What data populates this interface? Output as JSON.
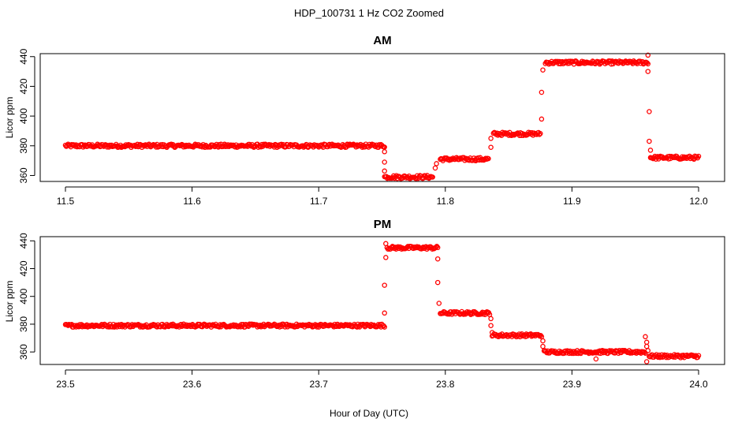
{
  "figure": {
    "title": "HDP_100731  1 Hz CO2 Zoomed",
    "xlabel": "Hour of Day (UTC)"
  },
  "chart_data": [
    {
      "type": "scatter",
      "title": "AM",
      "xlabel": "",
      "ylabel": "Licor ppm",
      "xlim": [
        11.5,
        12.0
      ],
      "ylim": [
        356,
        442
      ],
      "xticks": [
        11.5,
        11.6,
        11.7,
        11.8,
        11.9,
        12.0
      ],
      "xtick_labels": [
        "11.5",
        "11.6",
        "11.7",
        "11.8",
        "11.9",
        "12.0"
      ],
      "yticks": [
        360,
        380,
        400,
        420,
        440
      ],
      "ytick_labels": [
        "360",
        "380",
        "400",
        "420",
        "440"
      ],
      "grid": false,
      "marker": "open-circle",
      "color": "#ff0000",
      "series": [
        {
          "segments": [
            {
              "x0": 11.5,
              "x1": 11.752,
              "y": 380
            },
            {
              "x0": 11.752,
              "x1": 11.79,
              "y": 359
            },
            {
              "x0": 11.796,
              "x1": 11.834,
              "y": 371
            },
            {
              "x0": 11.838,
              "x1": 11.875,
              "y": 388
            },
            {
              "x0": 11.879,
              "x1": 11.96,
              "y": 436
            },
            {
              "x0": 11.962,
              "x1": 12.0,
              "y": 372
            }
          ],
          "transitions": [
            {
              "x": 11.752,
              "y": 376
            },
            {
              "x": 11.752,
              "y": 369
            },
            {
              "x": 11.752,
              "y": 363
            },
            {
              "x": 11.792,
              "y": 365
            },
            {
              "x": 11.793,
              "y": 368
            },
            {
              "x": 11.836,
              "y": 379
            },
            {
              "x": 11.836,
              "y": 385
            },
            {
              "x": 11.876,
              "y": 398
            },
            {
              "x": 11.876,
              "y": 416
            },
            {
              "x": 11.877,
              "y": 431
            },
            {
              "x": 11.96,
              "y": 441
            },
            {
              "x": 11.96,
              "y": 430
            },
            {
              "x": 11.961,
              "y": 403
            },
            {
              "x": 11.961,
              "y": 383
            },
            {
              "x": 11.962,
              "y": 377
            }
          ]
        }
      ]
    },
    {
      "type": "scatter",
      "title": "PM",
      "xlabel": "Hour of Day (UTC)",
      "ylabel": "Licor ppm",
      "xlim": [
        23.5,
        24.0
      ],
      "ylim": [
        351,
        443
      ],
      "xticks": [
        23.5,
        23.6,
        23.7,
        23.8,
        23.9,
        24.0
      ],
      "xtick_labels": [
        "23.5",
        "23.6",
        "23.7",
        "23.8",
        "23.9",
        "24.0"
      ],
      "yticks": [
        360,
        380,
        400,
        420,
        440
      ],
      "ytick_labels": [
        "360",
        "380",
        "400",
        "420",
        "440"
      ],
      "grid": false,
      "marker": "open-circle",
      "color": "#ff0000",
      "series": [
        {
          "segments": [
            {
              "x0": 23.5,
              "x1": 23.752,
              "y": 379
            },
            {
              "x0": 23.754,
              "x1": 23.794,
              "y": 435
            },
            {
              "x0": 23.796,
              "x1": 23.835,
              "y": 388
            },
            {
              "x0": 23.837,
              "x1": 23.876,
              "y": 372
            },
            {
              "x0": 23.878,
              "x1": 23.958,
              "y": 360
            },
            {
              "x0": 23.961,
              "x1": 24.0,
              "y": 357
            }
          ],
          "transitions": [
            {
              "x": 23.752,
              "y": 388
            },
            {
              "x": 23.752,
              "y": 408
            },
            {
              "x": 23.753,
              "y": 428
            },
            {
              "x": 23.753,
              "y": 438
            },
            {
              "x": 23.794,
              "y": 427
            },
            {
              "x": 23.794,
              "y": 410
            },
            {
              "x": 23.795,
              "y": 395
            },
            {
              "x": 23.836,
              "y": 384
            },
            {
              "x": 23.836,
              "y": 379
            },
            {
              "x": 23.837,
              "y": 374
            },
            {
              "x": 23.877,
              "y": 368
            },
            {
              "x": 23.877,
              "y": 364
            },
            {
              "x": 23.919,
              "y": 355
            },
            {
              "x": 23.958,
              "y": 371
            },
            {
              "x": 23.959,
              "y": 367
            },
            {
              "x": 23.959,
              "y": 364
            },
            {
              "x": 23.96,
              "y": 361
            },
            {
              "x": 23.959,
              "y": 353
            }
          ]
        }
      ]
    }
  ]
}
